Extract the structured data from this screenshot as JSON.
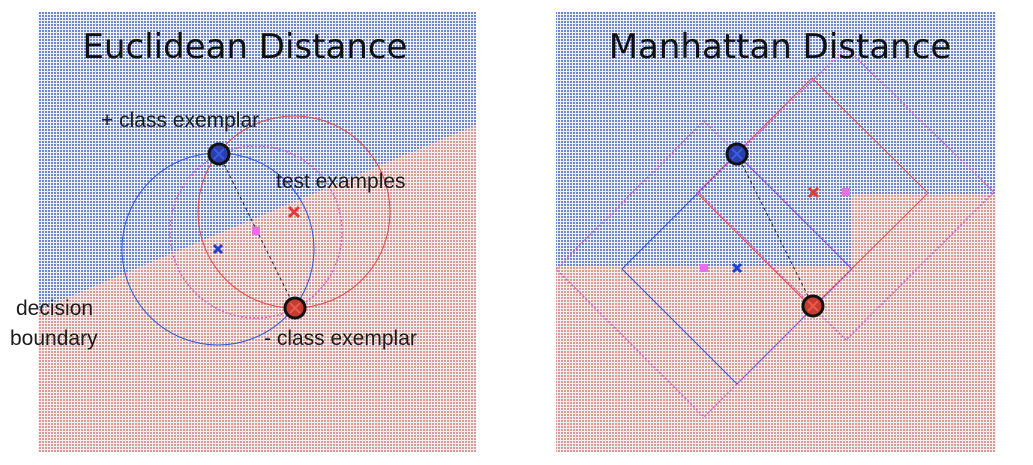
{
  "left_panel": {
    "title": "Euclidean Distance",
    "labels": {
      "plus_exemplar": "+ class exemplar",
      "test_examples": "test examples",
      "decision_line1": "decision",
      "decision_line2": "boundary",
      "minus_exemplar": "- class exemplar"
    }
  },
  "right_panel": {
    "title": "Manhattan Distance"
  },
  "colors": {
    "blue_region": "#6f86c9",
    "red_region": "#d69c98",
    "plus_class": "#1f3fd0",
    "minus_class": "#e03a3a",
    "test_point": "#e86de8",
    "exemplar_fill_plus": "#2a3ea8",
    "exemplar_fill_minus": "#c83a30"
  }
}
